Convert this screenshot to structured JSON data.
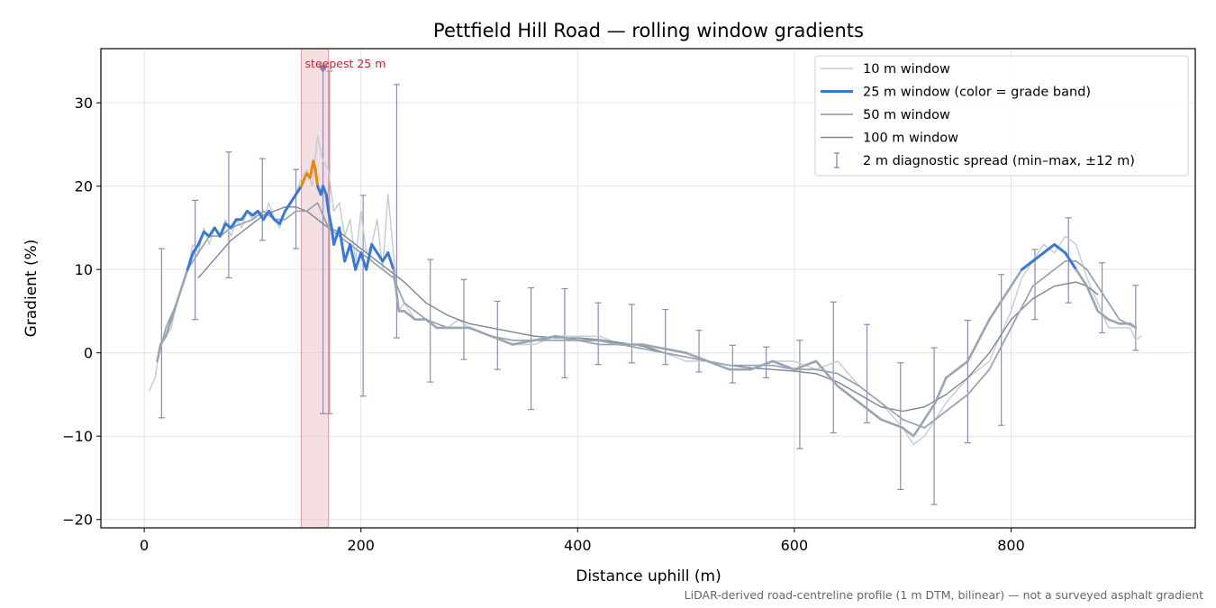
{
  "chart_data": {
    "type": "line",
    "title": "Pettfield Hill Road — rolling window gradients",
    "xlabel": "Distance uphill (m)",
    "ylabel": "Gradient (%)",
    "xlim": [
      -40,
      970
    ],
    "ylim": [
      -21,
      36.5
    ],
    "xticks": [
      0,
      200,
      400,
      600,
      800
    ],
    "yticks": [
      -20,
      -10,
      0,
      10,
      20,
      30
    ],
    "ytick_labels": [
      "−20",
      "−10",
      "0",
      "10",
      "20",
      "30"
    ],
    "grid": true,
    "legend_position": "top-right",
    "footnote": "LiDAR-derived road-centreline profile (1 m DTM, bilinear) — not a surveyed asphalt gradient",
    "highlight": {
      "x_start": 145,
      "x_end": 170,
      "label": "steepest 25 m",
      "marker_x": 165,
      "marker_y": 34
    },
    "colors": {
      "w10": "#c3cbd4",
      "w25": "#3a78d4",
      "w25_steep": "#e8870b",
      "w25_low": "#9aa5b3",
      "w50": "#9aa5b3",
      "w100": "#7d8592",
      "errorbar": "#9089b4",
      "highlight": "#e8b4b8"
    },
    "series": [
      {
        "name": "10 m window",
        "x": [
          5,
          10,
          15,
          20,
          25,
          30,
          35,
          40,
          45,
          50,
          55,
          60,
          65,
          70,
          75,
          80,
          85,
          90,
          95,
          100,
          105,
          110,
          115,
          120,
          125,
          130,
          135,
          140,
          145,
          150,
          155,
          160,
          165,
          170,
          175,
          180,
          185,
          190,
          195,
          200,
          205,
          210,
          215,
          220,
          225,
          230,
          235,
          240,
          250,
          260,
          270,
          280,
          290,
          300,
          320,
          340,
          360,
          380,
          400,
          420,
          440,
          460,
          480,
          500,
          520,
          540,
          560,
          580,
          600,
          620,
          640,
          660,
          680,
          700,
          710,
          720,
          730,
          740,
          760,
          780,
          800,
          810,
          820,
          830,
          840,
          850,
          860,
          870,
          880,
          890,
          900,
          910,
          915,
          920
        ],
        "y": [
          -4.5,
          -3,
          1,
          2,
          3,
          6,
          8,
          10,
          13,
          12,
          15,
          13,
          15,
          14,
          16,
          14,
          16,
          15,
          17,
          16,
          17,
          16,
          18,
          16,
          15,
          17,
          18,
          19,
          21,
          22,
          20,
          26,
          23,
          22,
          17,
          18,
          14,
          16,
          11,
          17,
          12,
          13,
          16,
          10,
          19,
          12,
          5,
          6,
          4,
          4,
          3,
          3,
          4,
          3,
          2,
          1,
          1,
          2,
          2,
          2,
          1,
          1,
          0,
          -1,
          -1,
          -2,
          -2,
          -1,
          -1,
          -2,
          -1,
          -4,
          -6,
          -9,
          -11,
          -10,
          -8,
          -6,
          -3,
          -1,
          5,
          9,
          11,
          13,
          12,
          14,
          13,
          9,
          6,
          3,
          3,
          3,
          1.5,
          2
        ]
      },
      {
        "name": "25 m window (color = grade band)",
        "x": [
          12,
          15,
          20,
          25,
          30,
          35,
          40,
          45,
          50,
          55,
          60,
          65,
          70,
          75,
          80,
          85,
          90,
          95,
          100,
          105,
          110,
          115,
          120,
          125,
          130,
          135,
          140,
          145,
          148,
          150,
          153,
          156,
          158,
          160,
          163,
          165,
          168,
          170,
          173,
          175,
          180,
          185,
          190,
          195,
          200,
          205,
          210,
          215,
          220,
          225,
          230,
          235,
          240,
          250,
          260,
          270,
          280,
          290,
          300,
          320,
          340,
          360,
          380,
          400,
          420,
          440,
          460,
          480,
          500,
          520,
          540,
          560,
          580,
          600,
          620,
          640,
          660,
          680,
          700,
          710,
          720,
          730,
          740,
          760,
          780,
          800,
          810,
          820,
          830,
          840,
          850,
          860,
          870,
          880,
          890,
          900,
          910,
          915
        ],
        "y": [
          -1,
          1,
          2,
          4,
          6,
          8,
          10,
          12,
          13,
          14.5,
          14,
          15,
          14,
          15.5,
          15,
          16,
          16,
          17,
          16.5,
          17,
          16,
          17,
          16,
          15.5,
          17,
          18,
          19,
          20,
          21,
          21.5,
          21,
          23,
          22,
          20,
          19,
          20,
          19,
          17,
          15,
          13,
          15,
          11,
          13,
          10,
          12,
          10,
          13,
          12,
          11,
          12,
          10,
          5,
          5,
          4,
          4,
          3,
          3,
          3,
          3,
          2,
          1,
          1.5,
          2,
          1.5,
          1.5,
          1,
          1,
          0.5,
          0,
          -1,
          -2,
          -2,
          -1,
          -2,
          -1,
          -4,
          -6,
          -8,
          -9,
          -10,
          -8,
          -6,
          -3,
          -1,
          4,
          8,
          10,
          11,
          12,
          13,
          12,
          10,
          8,
          5,
          4,
          3.5,
          3.5,
          3
        ]
      },
      {
        "name": "50 m window",
        "x": [
          12,
          20,
          30,
          40,
          50,
          60,
          70,
          80,
          90,
          100,
          110,
          120,
          130,
          140,
          150,
          160,
          170,
          180,
          190,
          200,
          210,
          220,
          230,
          240,
          250,
          260,
          270,
          280,
          290,
          300,
          320,
          340,
          360,
          380,
          400,
          420,
          440,
          460,
          480,
          500,
          520,
          540,
          560,
          580,
          600,
          620,
          640,
          660,
          680,
          700,
          720,
          740,
          760,
          780,
          800,
          820,
          840,
          850,
          860,
          870,
          880,
          890,
          900,
          915
        ],
        "y": [
          -1,
          3,
          6,
          10,
          12,
          14,
          14,
          15,
          15.5,
          16,
          17,
          16,
          16,
          17,
          17,
          18,
          15,
          14,
          13,
          12,
          11,
          10,
          9,
          6,
          5,
          4,
          3.5,
          3,
          3,
          3,
          2,
          1.5,
          1.5,
          1.5,
          1.5,
          1,
          1,
          0.5,
          0,
          -0.5,
          -1,
          -1.5,
          -1.5,
          -1.5,
          -2,
          -2,
          -2.5,
          -4,
          -6,
          -8,
          -9,
          -7,
          -5,
          -2,
          3,
          8,
          10,
          11,
          11,
          10,
          8,
          6,
          4,
          3
        ]
      },
      {
        "name": "100 m window",
        "x": [
          50,
          60,
          70,
          80,
          90,
          100,
          110,
          120,
          130,
          140,
          150,
          160,
          170,
          180,
          190,
          200,
          220,
          240,
          260,
          280,
          300,
          320,
          340,
          360,
          380,
          400,
          420,
          440,
          460,
          480,
          500,
          520,
          540,
          560,
          580,
          600,
          620,
          640,
          660,
          680,
          700,
          720,
          740,
          760,
          780,
          800,
          820,
          840,
          860,
          870,
          880
        ],
        "y": [
          9,
          10.5,
          12,
          13.5,
          14.5,
          15.5,
          16.5,
          17,
          17.5,
          17.5,
          17,
          16,
          15,
          14.5,
          13.5,
          12.5,
          10.5,
          8.5,
          6,
          4.5,
          3.5,
          3,
          2.5,
          2,
          1.8,
          1.8,
          1.6,
          1.2,
          0.8,
          0,
          -0.5,
          -1,
          -1.5,
          -1.8,
          -2,
          -2.2,
          -2.5,
          -3.5,
          -5,
          -6.5,
          -7,
          -6.5,
          -5,
          -3,
          0,
          4,
          6.5,
          8,
          8.5,
          8,
          7
        ]
      }
    ],
    "errorbars": {
      "name": "2 m diagnostic spread (min–max, ±12 m)",
      "x": [
        16,
        47,
        78,
        109,
        140,
        165,
        171,
        202,
        233,
        264,
        295,
        326,
        357,
        388,
        419,
        450,
        481,
        512,
        543,
        574,
        605,
        636,
        667,
        698,
        729,
        760,
        791,
        822,
        853,
        884,
        915
      ],
      "low": [
        -7.8,
        4,
        9,
        13.5,
        12.5,
        -7.3,
        -7.3,
        -5.2,
        1.8,
        -3.5,
        -0.8,
        -2,
        -6.8,
        -3,
        -1.4,
        -1.2,
        -1.4,
        -2.3,
        -3.6,
        -3,
        -11.5,
        -9.6,
        -8.4,
        -16.4,
        -18.2,
        -10.8,
        -8.7,
        4,
        6,
        2.4,
        0.3
      ],
      "high": [
        12.5,
        18.3,
        24.1,
        23.3,
        22,
        34,
        33.8,
        18.9,
        32.2,
        11.2,
        8.8,
        6.2,
        7.8,
        7.7,
        6,
        5.8,
        5.2,
        2.7,
        0.9,
        0.7,
        1.5,
        6.1,
        3.4,
        -1.2,
        0.6,
        3.9,
        9.4,
        12.4,
        16.2,
        10.8,
        8.1
      ]
    }
  }
}
